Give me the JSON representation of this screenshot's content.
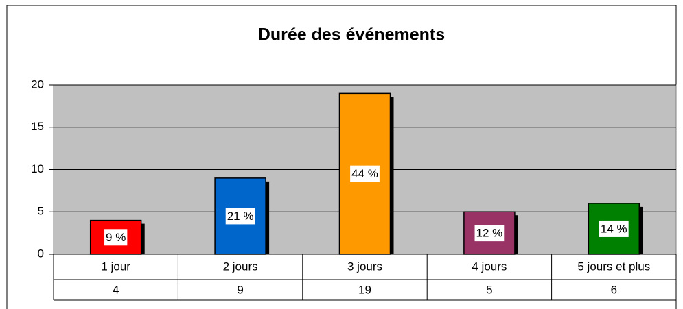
{
  "chart_data": {
    "type": "bar",
    "title": "Durée des événements",
    "categories": [
      "1 jour",
      "2 jours",
      "3 jours",
      "4 jours",
      "5 jours et plus"
    ],
    "values": [
      4,
      9,
      19,
      5,
      6
    ],
    "percent_labels": [
      "9 %",
      "21 %",
      "44 %",
      "12 %",
      "14 %"
    ],
    "colors": [
      "#ff0000",
      "#0066cc",
      "#ff9900",
      "#993366",
      "#008000"
    ],
    "ylim": [
      0,
      20
    ],
    "yticks": [
      0,
      5,
      10,
      15,
      20
    ],
    "grid": true
  }
}
